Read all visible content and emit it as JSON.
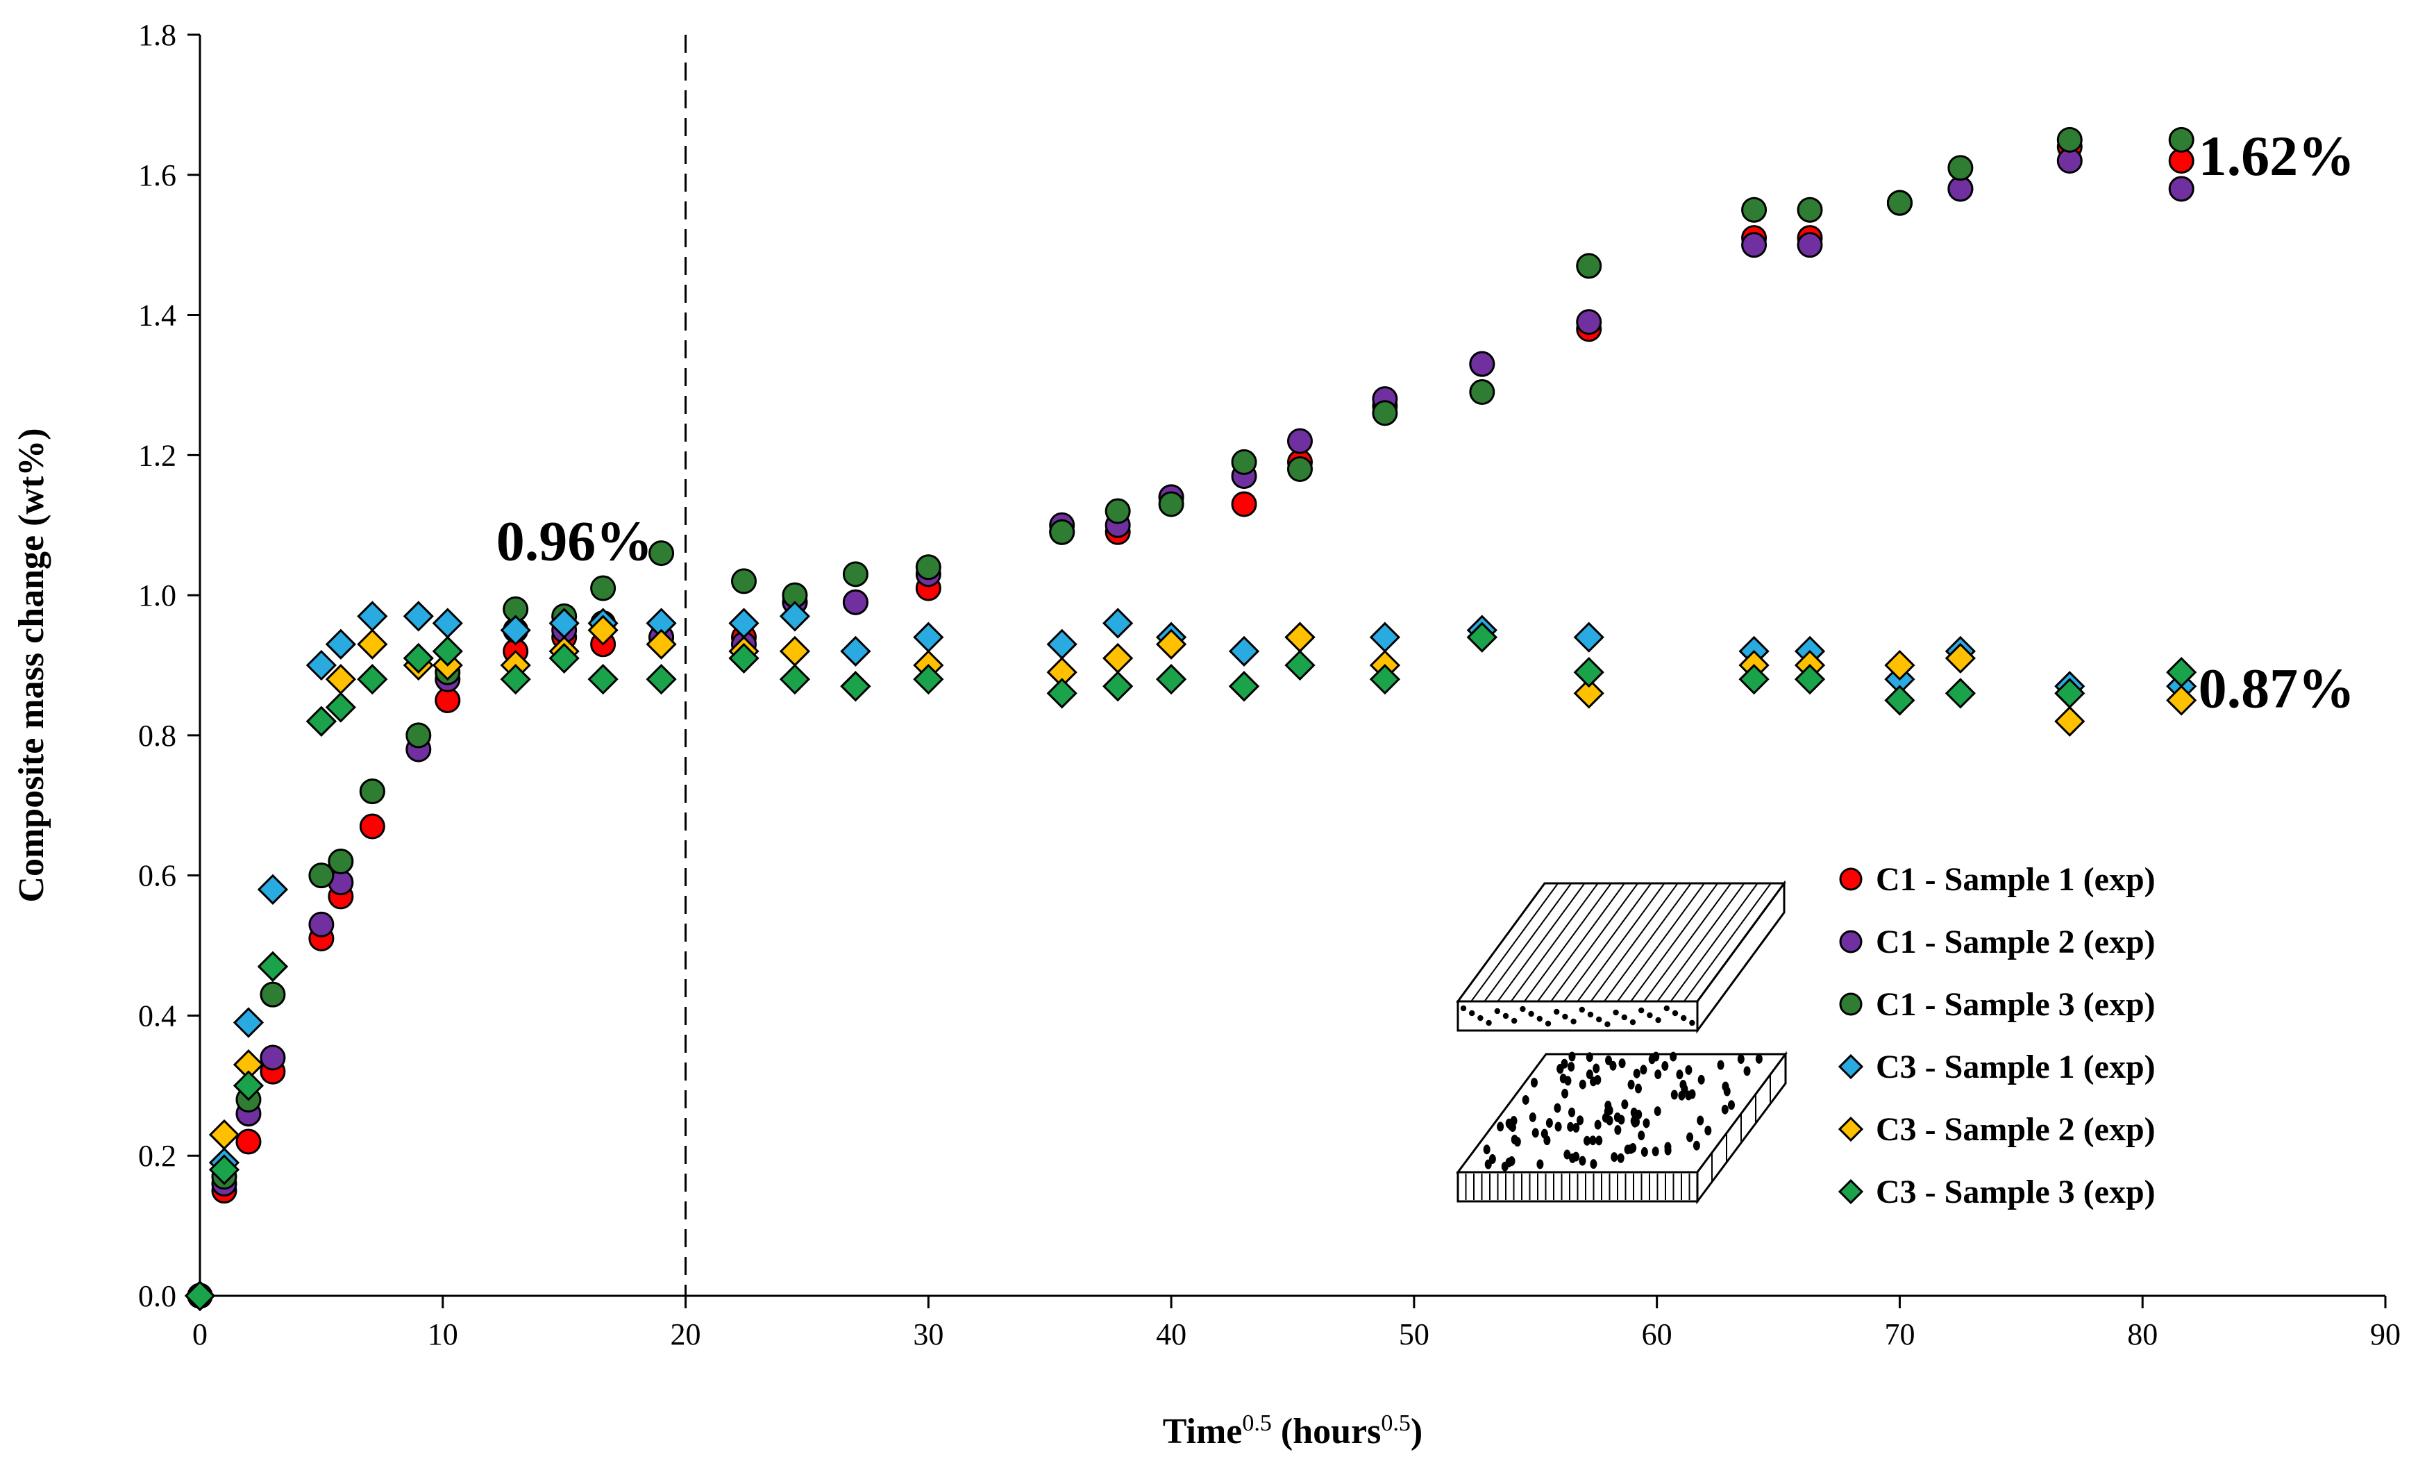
{
  "chart_data": {
    "type": "scatter",
    "title": "",
    "xlabel": "Time",
    "xlabel_sup": "0.5",
    "xlabel_unit": "(hours",
    "xlabel_unit_sup": "0.5",
    "xlabel_unit_close": ")",
    "ylabel": "Composite mass change (wt%)",
    "xlim": [
      0,
      90
    ],
    "ylim": [
      0,
      1.8
    ],
    "xticks": [
      0,
      10,
      20,
      30,
      40,
      50,
      60,
      70,
      80,
      90
    ],
    "yticks": [
      0.0,
      0.2,
      0.4,
      0.6,
      0.8,
      1.0,
      1.2,
      1.4,
      1.6,
      1.8
    ],
    "ytick_labels": [
      "0.0",
      "0.2",
      "0.4",
      "0.6",
      "0.8",
      "1.0",
      "1.2",
      "1.4",
      "1.6",
      "1.8"
    ],
    "grid": false,
    "vline_x": 20,
    "annotations": [
      {
        "text": "0.96%",
        "x": 12.2,
        "y": 1.05
      },
      {
        "text": "1.62%",
        "x": 82.3,
        "y": 1.6
      },
      {
        "text": "0.87%",
        "x": 82.3,
        "y": 0.84
      }
    ],
    "legend_position": "bottom-right",
    "series": [
      {
        "name": "C1 - Sample 1 (exp)",
        "marker": "circle",
        "color": "#ff0000",
        "x": [
          0,
          1,
          2,
          3,
          5,
          5.8,
          7.1,
          10.2,
          13,
          15,
          16.6,
          19,
          22.4,
          24.5,
          27,
          30,
          35.5,
          37.8,
          40,
          43,
          45.3,
          48.8,
          52.8,
          57.2,
          64,
          66.3,
          70,
          72.5,
          77,
          81.6
        ],
        "y": [
          0,
          0.15,
          0.22,
          0.32,
          0.51,
          0.57,
          0.67,
          0.85,
          0.92,
          0.94,
          0.93,
          0.94,
          0.94,
          0.99,
          0.99,
          1.01,
          1.09,
          1.09,
          1.14,
          1.13,
          1.19,
          1.27,
          1.33,
          1.38,
          1.51,
          1.51,
          1.56,
          1.58,
          1.64,
          1.62
        ]
      },
      {
        "name": "C1 - Sample 2 (exp)",
        "marker": "circle",
        "color": "#7030a0",
        "x": [
          0,
          1,
          2,
          3,
          5,
          5.8,
          7.1,
          9,
          10.2,
          13,
          15,
          16.6,
          19,
          22.4,
          24.5,
          27,
          30,
          35.5,
          37.8,
          40,
          43,
          45.3,
          48.8,
          52.8,
          57.2,
          64,
          66.3,
          70,
          72.5,
          77,
          81.6
        ],
        "y": [
          0,
          0.16,
          0.26,
          0.34,
          0.53,
          0.59,
          0.72,
          0.78,
          0.88,
          0.95,
          0.95,
          0.96,
          0.94,
          0.93,
          0.99,
          0.99,
          1.03,
          1.1,
          1.1,
          1.14,
          1.17,
          1.22,
          1.28,
          1.33,
          1.39,
          1.5,
          1.5,
          1.56,
          1.58,
          1.62,
          1.58
        ]
      },
      {
        "name": "C1 - Sample 3 (exp)",
        "marker": "circle",
        "color": "#2e7d32",
        "x": [
          0,
          1,
          2,
          3,
          5,
          5.8,
          7.1,
          9,
          10.2,
          13,
          15,
          16.6,
          19,
          22.4,
          24.5,
          27,
          30,
          35.5,
          37.8,
          40,
          43,
          45.3,
          48.8,
          52.8,
          57.2,
          64,
          66.3,
          70,
          72.5,
          77,
          81.6
        ],
        "y": [
          0,
          0.17,
          0.28,
          0.43,
          0.6,
          0.62,
          0.72,
          0.8,
          0.89,
          0.98,
          0.97,
          1.01,
          1.06,
          1.02,
          1.0,
          1.03,
          1.04,
          1.09,
          1.12,
          1.13,
          1.19,
          1.18,
          1.26,
          1.29,
          1.47,
          1.55,
          1.55,
          1.56,
          1.61,
          1.65,
          1.65
        ]
      },
      {
        "name": "C3 - Sample 1 (exp)",
        "marker": "diamond",
        "color": "#29aae1",
        "x": [
          0,
          1,
          2,
          3,
          5,
          5.8,
          7.1,
          9,
          10.2,
          13,
          15,
          16.6,
          19,
          22.4,
          24.5,
          27,
          30,
          35.5,
          37.8,
          40,
          43,
          45.3,
          48.8,
          52.8,
          57.2,
          64,
          66.3,
          70,
          72.5,
          77,
          81.6
        ],
        "y": [
          0,
          0.19,
          0.39,
          0.58,
          0.9,
          0.93,
          0.97,
          0.97,
          0.96,
          0.95,
          0.96,
          0.96,
          0.96,
          0.96,
          0.97,
          0.92,
          0.94,
          0.93,
          0.96,
          0.94,
          0.92,
          0.94,
          0.94,
          0.95,
          0.94,
          0.92,
          0.92,
          0.88,
          0.92,
          0.87,
          0.87
        ]
      },
      {
        "name": "C3 - Sample 2 (exp)",
        "marker": "diamond",
        "color": "#ffc000",
        "x": [
          0,
          1,
          2,
          3,
          5,
          5.8,
          7.1,
          9,
          10.2,
          13,
          15,
          16.6,
          19,
          22.4,
          24.5,
          27,
          30,
          35.5,
          37.8,
          40,
          43,
          45.3,
          48.8,
          52.8,
          57.2,
          64,
          66.3,
          70,
          72.5,
          77,
          81.6
        ],
        "y": [
          0,
          0.23,
          0.33,
          0.47,
          0.82,
          0.88,
          0.93,
          0.9,
          0.9,
          0.9,
          0.92,
          0.95,
          0.93,
          0.92,
          0.92,
          0.87,
          0.9,
          0.89,
          0.91,
          0.93,
          0.87,
          0.94,
          0.9,
          0.94,
          0.86,
          0.9,
          0.9,
          0.9,
          0.91,
          0.82,
          0.85
        ]
      },
      {
        "name": "C3 - Sample 3 (exp)",
        "marker": "diamond",
        "color": "#1aa34a",
        "x": [
          0,
          1,
          2,
          3,
          5,
          5.8,
          7.1,
          9,
          10.2,
          13,
          15,
          16.6,
          19,
          22.4,
          24.5,
          27,
          30,
          35.5,
          37.8,
          40,
          43,
          45.3,
          48.8,
          52.8,
          57.2,
          64,
          66.3,
          70,
          72.5,
          77,
          81.6
        ],
        "y": [
          0,
          0.18,
          0.3,
          0.47,
          0.82,
          0.84,
          0.88,
          0.91,
          0.92,
          0.88,
          0.91,
          0.88,
          0.88,
          0.91,
          0.88,
          0.87,
          0.88,
          0.86,
          0.87,
          0.88,
          0.87,
          0.9,
          0.88,
          0.94,
          0.89,
          0.88,
          0.88,
          0.85,
          0.86,
          0.86,
          0.89
        ]
      }
    ]
  }
}
